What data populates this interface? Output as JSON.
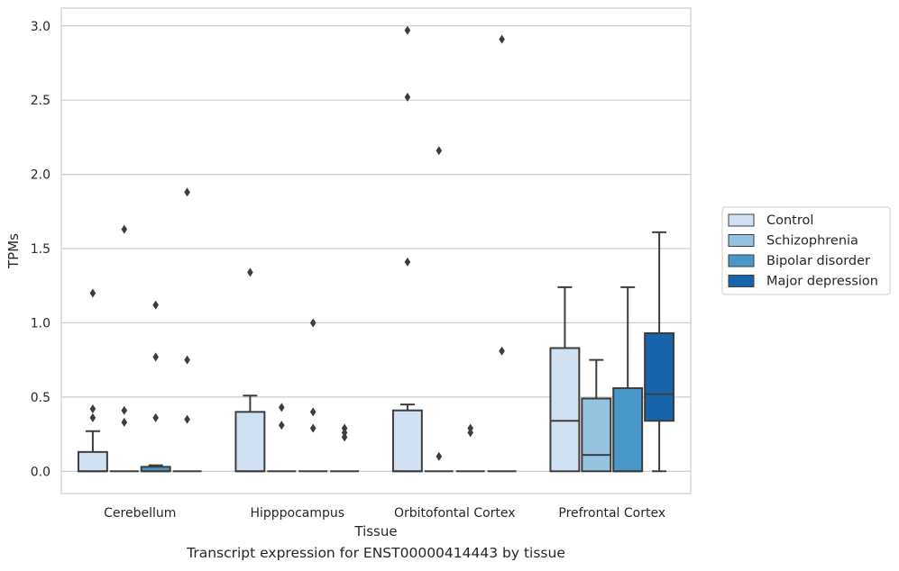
{
  "chart_data": {
    "type": "box",
    "xlabel": "Tissue",
    "ylabel": "TPMs",
    "caption": "Transcript expression for ENST00000414443 by tissue",
    "ylim": [
      -0.15,
      3.12
    ],
    "yticks": [
      "0.0",
      "0.5",
      "1.0",
      "1.5",
      "2.0",
      "2.5",
      "3.0"
    ],
    "ytick_values": [
      0,
      0.5,
      1.0,
      1.5,
      2.0,
      2.5,
      3.0
    ],
    "grid": "horizontal",
    "legend_position": "right",
    "categories": [
      "Cerebellum",
      "Hipppocampus",
      "Orbitofontal Cortex",
      "Prefrontal Cortex"
    ],
    "series": [
      {
        "name": "Control",
        "color": "#d0e2f2",
        "boxes": [
          {
            "q1": 0,
            "median": 0,
            "q3": 0.13,
            "whislo": 0,
            "whishi": 0.27,
            "fliers": [
              0.36,
              0.42,
              1.2
            ]
          },
          {
            "q1": 0,
            "median": 0,
            "q3": 0.4,
            "whislo": 0,
            "whishi": 0.51,
            "fliers": [
              1.34
            ]
          },
          {
            "q1": 0,
            "median": 0,
            "q3": 0.41,
            "whislo": 0,
            "whishi": 0.45,
            "fliers": [
              1.41,
              2.52,
              2.97
            ]
          },
          {
            "q1": 0,
            "median": 0.34,
            "q3": 0.83,
            "whislo": 0,
            "whishi": 1.24,
            "fliers": []
          }
        ]
      },
      {
        "name": "Schizophrenia",
        "color": "#94c4df",
        "boxes": [
          {
            "q1": 0,
            "median": 0,
            "q3": 0,
            "whislo": 0,
            "whishi": 0,
            "fliers": [
              0.33,
              0.41,
              1.63
            ]
          },
          {
            "q1": 0,
            "median": 0,
            "q3": 0,
            "whislo": 0,
            "whishi": 0,
            "fliers": [
              0.31,
              0.43
            ]
          },
          {
            "q1": 0,
            "median": 0,
            "q3": 0,
            "whislo": 0,
            "whishi": 0,
            "fliers": [
              0.1,
              2.16
            ]
          },
          {
            "q1": 0,
            "median": 0.11,
            "q3": 0.49,
            "whislo": 0,
            "whishi": 0.75,
            "fliers": []
          }
        ]
      },
      {
        "name": "Bipolar disorder",
        "color": "#4a98c9",
        "boxes": [
          {
            "q1": 0,
            "median": 0,
            "q3": 0.03,
            "whislo": 0,
            "whishi": 0.04,
            "fliers": [
              0.36,
              0.77,
              1.12
            ]
          },
          {
            "q1": 0,
            "median": 0,
            "q3": 0,
            "whislo": 0,
            "whishi": 0,
            "fliers": [
              0.29,
              0.4,
              1.0
            ]
          },
          {
            "q1": 0,
            "median": 0,
            "q3": 0,
            "whislo": 0,
            "whishi": 0,
            "fliers": [
              0.26,
              0.29
            ]
          },
          {
            "q1": 0,
            "median": 0,
            "q3": 0.56,
            "whislo": 0,
            "whishi": 1.24,
            "fliers": []
          }
        ]
      },
      {
        "name": "Major depression",
        "color": "#1764ab",
        "boxes": [
          {
            "q1": 0,
            "median": 0,
            "q3": 0,
            "whislo": 0,
            "whishi": 0,
            "fliers": [
              0.35,
              0.75,
              1.88
            ]
          },
          {
            "q1": 0,
            "median": 0,
            "q3": 0,
            "whislo": 0,
            "whishi": 0,
            "fliers": [
              0.23,
              0.26,
              0.29
            ]
          },
          {
            "q1": 0,
            "median": 0,
            "q3": 0,
            "whislo": 0,
            "whishi": 0,
            "fliers": [
              0.81,
              2.91
            ]
          },
          {
            "q1": 0.34,
            "median": 0.52,
            "q3": 0.93,
            "whislo": 0,
            "whishi": 1.61,
            "fliers": []
          }
        ]
      }
    ]
  }
}
